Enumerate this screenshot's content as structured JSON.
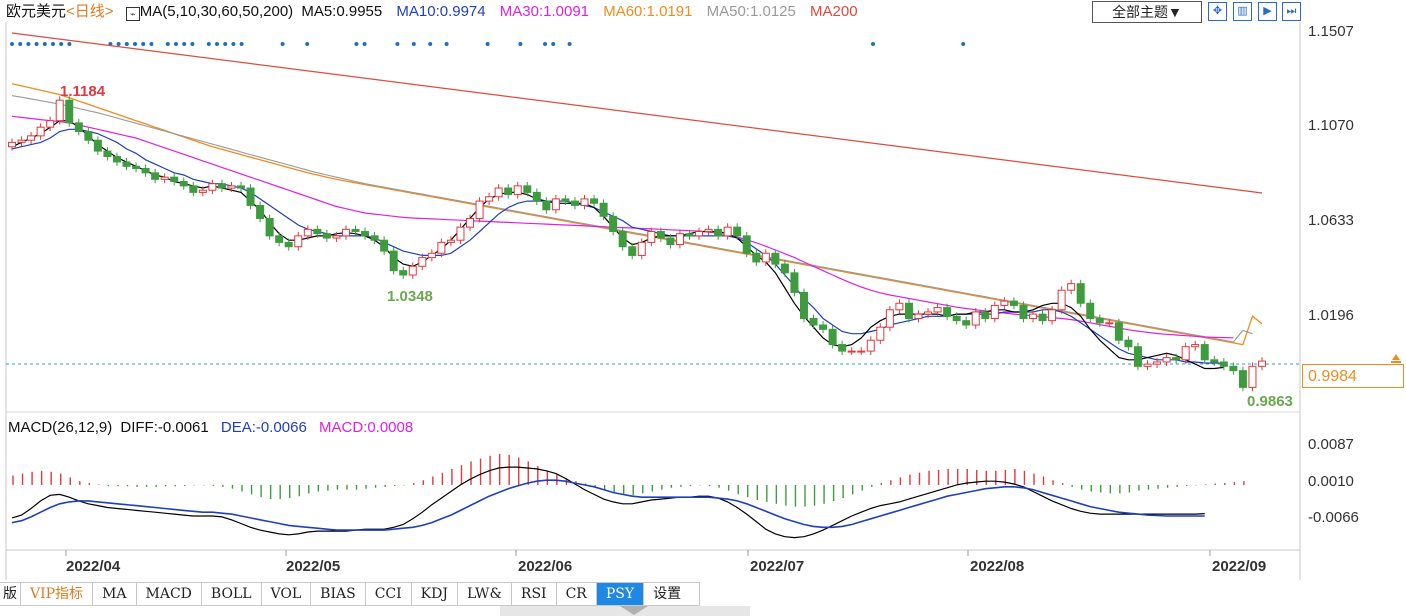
{
  "header": {
    "symbol": "欧元美元",
    "period": "<日线>",
    "ma_title": "MA(5,10,30,60,50,200)",
    "ma5": "MA5:0.9955",
    "ma10": "MA10:0.9974",
    "ma30": "MA30:1.0091",
    "ma60": "MA60:1.0191",
    "ma50": "MA50:1.0125",
    "ma200": "MA200",
    "theme_button": "全部主题▼",
    "tool_icons": [
      "expand-icon",
      "split-icon",
      "play-icon",
      "next-icon"
    ]
  },
  "colors": {
    "up": "#e0393e",
    "down": "#3f9b3f",
    "ma5": "#000000",
    "ma10": "#1f3fbf",
    "ma30": "#e020e0",
    "ma60": "#f08c1e",
    "ma50": "#9a9a9a",
    "ma200": "#e04a3a",
    "diff": "#000000",
    "dea": "#1f3fbf"
  },
  "price_tag": "0.9984",
  "macd_header": {
    "title": "MACD(26,12,9)",
    "diff": "DIFF:-0.0061",
    "dea": "DEA:-0.0066",
    "macd": "MACD:0.0008"
  },
  "tabs": [
    "版",
    "VIP指标",
    "MA",
    "MACD",
    "BOLL",
    "VOL",
    "BIAS",
    "CCI",
    "KDJ",
    "LW&",
    "RSI",
    "CR",
    "PSY",
    "设置"
  ],
  "active_tab": "PSY",
  "chart_data": {
    "type": "candlestick",
    "title": "欧元美元 <日线>",
    "price_axis": {
      "ticks": [
        "1.1507",
        "1.1070",
        "1.0633",
        "1.0196"
      ],
      "range": [
        0.976,
        1.1507
      ]
    },
    "macd_axis": {
      "ticks": [
        "0.0087",
        "0.0010",
        "-0.0066"
      ],
      "range": [
        -0.0115,
        0.0105
      ]
    },
    "date_labels": [
      "2022/04",
      "2022/05",
      "2022/06",
      "2022/07",
      "2022/08",
      "2022/09"
    ],
    "annotations": {
      "high": "1.1184",
      "low1": "1.0348",
      "low2": "0.9863",
      "current": "0.9984"
    },
    "closes": [
      1.099,
      1.1,
      1.102,
      1.106,
      1.109,
      1.1184,
      1.108,
      1.104,
      1.1,
      1.095,
      1.0925,
      1.09,
      1.088,
      1.087,
      1.085,
      1.082,
      1.083,
      1.081,
      1.079,
      1.076,
      1.077,
      1.08,
      1.078,
      1.079,
      1.078,
      1.07,
      1.064,
      1.056,
      1.053,
      1.051,
      1.056,
      1.059,
      1.057,
      1.055,
      1.056,
      1.059,
      1.058,
      1.056,
      1.054,
      1.049,
      1.04,
      1.038,
      1.042,
      1.046,
      1.048,
      1.053,
      1.054,
      1.06,
      1.064,
      1.072,
      1.074,
      1.078,
      1.075,
      1.079,
      1.076,
      1.072,
      1.068,
      1.073,
      1.072,
      1.07,
      1.073,
      1.071,
      1.065,
      1.058,
      1.051,
      1.047,
      1.053,
      1.058,
      1.055,
      1.052,
      1.057,
      1.056,
      1.058,
      1.059,
      1.056,
      1.06,
      1.056,
      1.048,
      1.044,
      1.048,
      1.043,
      1.039,
      1.03,
      1.018,
      1.015,
      1.013,
      1.006,
      1.003,
      1.003,
      1.003,
      1.008,
      1.014,
      1.022,
      1.025,
      1.018,
      1.02,
      1.021,
      1.023,
      1.019,
      1.017,
      1.015,
      1.021,
      1.018,
      1.024,
      1.026,
      1.024,
      1.018,
      1.02,
      1.017,
      1.022,
      1.031,
      1.034,
      1.025,
      1.018,
      1.016,
      1.016,
      1.008,
      1.005,
      0.996,
      0.997,
      0.998,
      1.0,
      0.999,
      1.005,
      1.006,
      0.999,
      0.998,
      0.996,
      0.994,
      0.9863,
      0.996,
      0.9984
    ],
    "ma5": [
      1.097,
      1.099,
      1.101,
      1.103,
      1.106,
      1.109,
      1.109,
      1.106,
      1.102,
      1.098,
      1.095,
      1.092,
      1.09,
      1.088,
      1.086,
      1.084,
      1.083,
      1.081,
      1.08,
      1.079,
      1.078,
      1.079,
      1.078,
      1.077,
      1.076,
      1.072,
      1.068,
      1.062,
      1.057,
      1.054,
      1.054,
      1.055,
      1.056,
      1.056,
      1.057,
      1.0575,
      1.057,
      1.056,
      1.054,
      1.051,
      1.046,
      1.043,
      1.042,
      1.044,
      1.047,
      1.05,
      1.054,
      1.059,
      1.064,
      1.069,
      1.073,
      1.075,
      1.076,
      1.076,
      1.075,
      1.073,
      1.072,
      1.071,
      1.071,
      1.071,
      1.071,
      1.069,
      1.065,
      1.06,
      1.055,
      1.052,
      1.053,
      1.055,
      1.056,
      1.056,
      1.056,
      1.057,
      1.058,
      1.058,
      1.058,
      1.057,
      1.055,
      1.051,
      1.047,
      1.044,
      1.039,
      1.032,
      1.025,
      1.019,
      1.014,
      1.009,
      1.006,
      1.005,
      1.006,
      1.009,
      1.014,
      1.017,
      1.019,
      1.02,
      1.02,
      1.02,
      1.02,
      1.02,
      1.019,
      1.02,
      1.02,
      1.021,
      1.021,
      1.022,
      1.022,
      1.021,
      1.021,
      1.022,
      1.024,
      1.025,
      1.025,
      1.023,
      1.019,
      1.013,
      1.008,
      1.004,
      1.0,
      0.999,
      0.999,
      1.0,
      1.001,
      1.002,
      1.001,
      0.999,
      0.997,
      0.995,
      0.995,
      0.9955
    ],
    "ma10": [
      1.096,
      1.097,
      1.098,
      1.099,
      1.101,
      1.104,
      1.105,
      1.105,
      1.104,
      1.103,
      1.101,
      1.099,
      1.096,
      1.094,
      1.091,
      1.089,
      1.087,
      1.085,
      1.084,
      1.082,
      1.081,
      1.08,
      1.08,
      1.079,
      1.078,
      1.076,
      1.073,
      1.07,
      1.067,
      1.064,
      1.061,
      1.059,
      1.058,
      1.057,
      1.056,
      1.056,
      1.056,
      1.056,
      1.055,
      1.053,
      1.051,
      1.049,
      1.048,
      1.047,
      1.047,
      1.047,
      1.048,
      1.051,
      1.054,
      1.058,
      1.062,
      1.066,
      1.069,
      1.071,
      1.072,
      1.072,
      1.072,
      1.072,
      1.072,
      1.071,
      1.07,
      1.069,
      1.067,
      1.065,
      1.063,
      1.06,
      1.059,
      1.058,
      1.057,
      1.056,
      1.056,
      1.056,
      1.056,
      1.056,
      1.056,
      1.056,
      1.055,
      1.053,
      1.05,
      1.047,
      1.043,
      1.038,
      1.033,
      1.027,
      1.023,
      1.018,
      1.015,
      1.012,
      1.011,
      1.011,
      1.012,
      1.013,
      1.015,
      1.016,
      1.017,
      1.018,
      1.019,
      1.019,
      1.019,
      1.02,
      1.02,
      1.02,
      1.02,
      1.02,
      1.021,
      1.021,
      1.021,
      1.021,
      1.022,
      1.022,
      1.021,
      1.019,
      1.016,
      1.013,
      1.01,
      1.007,
      1.004,
      1.002,
      1.001,
      1.0,
      0.999,
      0.999,
      0.999,
      0.998,
      0.998,
      0.9975,
      0.9975,
      0.9974
    ],
    "ma30": [
      1.111,
      1.1105,
      1.11,
      1.1095,
      1.109,
      1.1085,
      1.108,
      1.107,
      1.106,
      1.105,
      1.104,
      1.103,
      1.102,
      1.101,
      1.0995,
      1.098,
      1.0965,
      1.095,
      1.0935,
      1.092,
      1.0905,
      1.089,
      1.0875,
      1.086,
      1.0845,
      1.083,
      1.0815,
      1.08,
      1.0785,
      1.077,
      1.0755,
      1.074,
      1.0725,
      1.071,
      1.0695,
      1.0685,
      1.0675,
      1.0665,
      1.066,
      1.0655,
      1.065,
      1.0645,
      1.0642,
      1.064,
      1.0638,
      1.0636,
      1.0634,
      1.0632,
      1.063,
      1.0628,
      1.0626,
      1.0624,
      1.0622,
      1.062,
      1.0618,
      1.0616,
      1.0614,
      1.0612,
      1.061,
      1.0608,
      1.0606,
      1.0604,
      1.0602,
      1.06,
      1.0598,
      1.0596,
      1.0594,
      1.0592,
      1.059,
      1.0588,
      1.0586,
      1.0584,
      1.0582,
      1.0578,
      1.0572,
      1.0565,
      1.0555,
      1.0542,
      1.0528,
      1.0512,
      1.0495,
      1.0478,
      1.046,
      1.044,
      1.042,
      1.04,
      1.038,
      1.036,
      1.0342,
      1.0325,
      1.031,
      1.0298,
      1.0288,
      1.028,
      1.0272,
      1.0264,
      1.0256,
      1.0248,
      1.024,
      1.0232,
      1.0226,
      1.022,
      1.0215,
      1.021,
      1.0205,
      1.02,
      1.0196,
      1.0192,
      1.0188,
      1.0184,
      1.018,
      1.0175,
      1.0168,
      1.016,
      1.0152,
      1.0144,
      1.0136,
      1.0128,
      1.0122,
      1.0116,
      1.0111,
      1.0107,
      1.0104,
      1.0101,
      1.0098,
      1.0095,
      1.0093,
      1.0092,
      1.0091
    ],
    "ma60": [
      1.126,
      1.125,
      1.124,
      1.123,
      1.122,
      1.121,
      1.1195,
      1.118,
      1.1165,
      1.115,
      1.1135,
      1.112,
      1.1105,
      1.109,
      1.1075,
      1.106,
      1.1045,
      1.103,
      1.1015,
      1.1,
      1.0985,
      1.097,
      1.0958,
      1.0946,
      1.0934,
      1.0922,
      1.091,
      1.0898,
      1.0886,
      1.0874,
      1.0862,
      1.085,
      1.084,
      1.083,
      1.082,
      1.0812,
      1.0804,
      1.0796,
      1.0788,
      1.078,
      1.0772,
      1.0764,
      1.0756,
      1.0748,
      1.074,
      1.0732,
      1.0724,
      1.0716,
      1.0708,
      1.07,
      1.0692,
      1.0684,
      1.0676,
      1.0668,
      1.066,
      1.0652,
      1.0644,
      1.0636,
      1.0628,
      1.062,
      1.0612,
      1.0604,
      1.0596,
      1.0588,
      1.058,
      1.0572,
      1.0564,
      1.0556,
      1.0548,
      1.054,
      1.0532,
      1.0524,
      1.0516,
      1.0508,
      1.05,
      1.0492,
      1.0484,
      1.0476,
      1.0468,
      1.046,
      1.0452,
      1.0444,
      1.0436,
      1.0428,
      1.042,
      1.0412,
      1.0404,
      1.0396,
      1.0388,
      1.038,
      1.0372,
      1.0364,
      1.0356,
      1.0348,
      1.034,
      1.0332,
      1.0324,
      1.0316,
      1.0308,
      1.03,
      1.0292,
      1.0284,
      1.0276,
      1.0268,
      1.026,
      1.0252,
      1.0244,
      1.0236,
      1.0228,
      1.022,
      1.0212,
      1.0204,
      1.0196,
      1.0188,
      1.018,
      1.0172,
      1.0164,
      1.0156,
      1.0148,
      1.014,
      1.0132,
      1.0124,
      1.0116,
      1.0108,
      1.01,
      1.0092,
      1.0084,
      1.0076,
      1.0068,
      1.006,
      1.0191
    ],
    "ma50": [
      1.1205,
      1.1198,
      1.119,
      1.1182,
      1.1174,
      1.1166,
      1.1156,
      1.1146,
      1.1136,
      1.1126,
      1.1114,
      1.1102,
      1.109,
      1.1078,
      1.1066,
      1.1054,
      1.1042,
      1.103,
      1.1018,
      1.1006,
      1.0994,
      1.0982,
      1.097,
      1.0958,
      1.0946,
      1.0934,
      1.0922,
      1.091,
      1.0898,
      1.0886,
      1.0874,
      1.0862,
      1.085,
      1.084,
      1.083,
      1.082,
      1.081,
      1.08,
      1.0792,
      1.0784,
      1.0776,
      1.0768,
      1.076,
      1.0752,
      1.0744,
      1.0736,
      1.0728,
      1.072,
      1.0712,
      1.0704,
      1.0696,
      1.0688,
      1.068,
      1.0672,
      1.0664,
      1.0656,
      1.0648,
      1.064,
      1.0632,
      1.0624,
      1.0616,
      1.0608,
      1.06,
      1.0592,
      1.0584,
      1.0576,
      1.0568,
      1.056,
      1.0552,
      1.0544,
      1.0536,
      1.0528,
      1.052,
      1.0512,
      1.0504,
      1.0496,
      1.0488,
      1.048,
      1.0472,
      1.0464,
      1.0456,
      1.0448,
      1.044,
      1.0432,
      1.0424,
      1.0416,
      1.0408,
      1.04,
      1.0392,
      1.0384,
      1.0376,
      1.0368,
      1.036,
      1.0352,
      1.0344,
      1.0336,
      1.0328,
      1.032,
      1.0312,
      1.0304,
      1.0296,
      1.0288,
      1.028,
      1.0272,
      1.0264,
      1.0256,
      1.0248,
      1.024,
      1.0232,
      1.0224,
      1.0216,
      1.0208,
      1.02,
      1.0192,
      1.0184,
      1.0176,
      1.0168,
      1.016,
      1.0152,
      1.0144,
      1.0136,
      1.0128,
      1.012,
      1.0112,
      1.0104,
      1.0096,
      1.0088,
      1.008,
      1.0072,
      1.0125
    ],
    "ma200": [
      1.148,
      1.1475,
      1.147,
      1.1465,
      1.146,
      1.1455,
      1.145,
      1.1445,
      1.144,
      1.1435,
      1.143,
      1.1425,
      1.142,
      1.1415,
      1.141,
      1.1405,
      1.14,
      1.1395,
      1.139,
      1.1385,
      1.138,
      1.1375,
      1.137,
      1.1365,
      1.136,
      1.1355,
      1.135,
      1.1345,
      1.134,
      1.1335,
      1.133,
      1.1325,
      1.132,
      1.1315,
      1.131,
      1.1305,
      1.13,
      1.1295,
      1.129,
      1.1285,
      1.128,
      1.1275,
      1.127,
      1.1265,
      1.126,
      1.1255,
      1.125,
      1.1245,
      1.124,
      1.1235,
      1.123,
      1.1225,
      1.122,
      1.1215,
      1.121,
      1.1205,
      1.12,
      1.1195,
      1.119,
      1.1185,
      1.118,
      1.1175,
      1.117,
      1.1165,
      1.116,
      1.1155,
      1.115,
      1.1145,
      1.114,
      1.1135,
      1.113,
      1.1125,
      1.112,
      1.1115,
      1.111,
      1.1105,
      1.11,
      1.1095,
      1.109,
      1.1085,
      1.108,
      1.1075,
      1.107,
      1.1065,
      1.106,
      1.1055,
      1.105,
      1.1045,
      1.104,
      1.1035,
      1.103,
      1.1025,
      1.102,
      1.1015,
      1.101,
      1.1005,
      1.1,
      1.0995,
      1.099,
      1.0985,
      1.098,
      1.0975,
      1.097,
      1.0965,
      1.096,
      1.0955,
      1.095,
      1.0945,
      1.094,
      1.0935,
      1.093,
      1.0925,
      1.092,
      1.0915,
      1.091,
      1.0905,
      1.09,
      1.0895,
      1.089,
      1.0885,
      1.088,
      1.0875,
      1.087,
      1.0865,
      1.086,
      1.0855,
      1.085,
      1.0845,
      1.084,
      1.0835,
      1.083,
      1.0825
    ],
    "macd_hist": [
      0.002,
      0.0024,
      0.0028,
      0.003,
      0.0028,
      0.0024,
      0.0016,
      0.0008,
      0.0004,
      0.0001,
      -0.0002,
      -0.0003,
      -0.0003,
      -0.0004,
      -0.0004,
      -0.0004,
      -0.0003,
      -0.0003,
      -0.0002,
      -0.0001,
      -0.0001,
      -0.0002,
      -0.0004,
      -0.0008,
      -0.0014,
      -0.002,
      -0.0026,
      -0.003,
      -0.003,
      -0.0028,
      -0.0024,
      -0.0018,
      -0.0014,
      -0.0012,
      -0.001,
      -0.001,
      -0.001,
      -0.0008,
      -0.0006,
      -0.0004,
      -0.0002,
      -0.0001,
      0.0004,
      0.001,
      0.0018,
      0.0026,
      0.0034,
      0.0042,
      0.005,
      0.0056,
      0.0062,
      0.0066,
      0.0064,
      0.0058,
      0.005,
      0.004,
      0.003,
      0.0022,
      0.0014,
      0.0008,
      0.0003,
      -0.0004,
      -0.001,
      -0.0016,
      -0.002,
      -0.0022,
      -0.0018,
      -0.0014,
      -0.001,
      -0.0006,
      -0.0004,
      -0.0002,
      -0.0001,
      -0.0002,
      -0.0006,
      -0.0012,
      -0.002,
      -0.0026,
      -0.0032,
      -0.0036,
      -0.004,
      -0.0044,
      -0.0046,
      -0.0046,
      -0.0044,
      -0.004,
      -0.0034,
      -0.0028,
      -0.002,
      -0.0012,
      -0.0004,
      0.0004,
      0.001,
      0.0016,
      0.0022,
      0.0026,
      0.003,
      0.0032,
      0.0034,
      0.0034,
      0.0034,
      0.0032,
      0.003,
      0.003,
      0.0032,
      0.0034,
      0.003,
      0.0024,
      0.0018,
      0.001,
      0.0004,
      -0.0004,
      -0.001,
      -0.0014,
      -0.0016,
      -0.0018,
      -0.0018,
      -0.0016,
      -0.0012,
      -0.001,
      -0.0008,
      -0.0006,
      -0.0004,
      -0.0002,
      -0.0001,
      0.0001,
      0.0003,
      0.0004,
      0.0006,
      0.0008
    ],
    "diff": [
      -0.007,
      -0.0064,
      -0.005,
      -0.0034,
      -0.0022,
      -0.002,
      -0.0026,
      -0.0034,
      -0.004,
      -0.0044,
      -0.0048,
      -0.005,
      -0.0052,
      -0.0054,
      -0.0056,
      -0.0058,
      -0.006,
      -0.0062,
      -0.0064,
      -0.0066,
      -0.0066,
      -0.0066,
      -0.0068,
      -0.0074,
      -0.0082,
      -0.009,
      -0.0096,
      -0.01,
      -0.0104,
      -0.0106,
      -0.0104,
      -0.01,
      -0.0098,
      -0.0098,
      -0.0098,
      -0.0098,
      -0.0096,
      -0.0094,
      -0.0094,
      -0.0094,
      -0.009,
      -0.0084,
      -0.0072,
      -0.0058,
      -0.0042,
      -0.0028,
      -0.0014,
      0.0,
      0.0012,
      0.0022,
      0.003,
      0.0036,
      0.0038,
      0.0038,
      0.0036,
      0.0034,
      0.003,
      0.0024,
      0.0014,
      0.0002,
      -0.001,
      -0.002,
      -0.003,
      -0.0036,
      -0.004,
      -0.004,
      -0.0036,
      -0.0032,
      -0.003,
      -0.0028,
      -0.0026,
      -0.0026,
      -0.0024,
      -0.0024,
      -0.0028,
      -0.0036,
      -0.0048,
      -0.0062,
      -0.0078,
      -0.0094,
      -0.0104,
      -0.011,
      -0.0112,
      -0.011,
      -0.0104,
      -0.0096,
      -0.0086,
      -0.0076,
      -0.0066,
      -0.0058,
      -0.005,
      -0.0044,
      -0.004,
      -0.0036,
      -0.003,
      -0.0024,
      -0.0018,
      -0.0012,
      -0.0006,
      0.0,
      0.0004,
      0.0006,
      0.0008,
      0.0008,
      0.0006,
      0.0002,
      -0.0004,
      -0.0014,
      -0.0024,
      -0.0034,
      -0.0042,
      -0.005,
      -0.0056,
      -0.006,
      -0.0062,
      -0.0062,
      -0.0062,
      -0.0062,
      -0.0062,
      -0.0062,
      -0.0062,
      -0.0062,
      -0.0062,
      -0.0062,
      -0.0062,
      -0.0061
    ],
    "dea": [
      -0.008,
      -0.0076,
      -0.0068,
      -0.0058,
      -0.0048,
      -0.004,
      -0.0036,
      -0.0034,
      -0.0034,
      -0.0036,
      -0.0038,
      -0.004,
      -0.0042,
      -0.0044,
      -0.0046,
      -0.0048,
      -0.005,
      -0.0052,
      -0.0054,
      -0.0056,
      -0.0058,
      -0.0058,
      -0.006,
      -0.0062,
      -0.0066,
      -0.007,
      -0.0074,
      -0.0078,
      -0.0082,
      -0.0086,
      -0.0088,
      -0.009,
      -0.0092,
      -0.0094,
      -0.0096,
      -0.0096,
      -0.0096,
      -0.0096,
      -0.0096,
      -0.0096,
      -0.0094,
      -0.0092,
      -0.009,
      -0.0086,
      -0.008,
      -0.0072,
      -0.0064,
      -0.0054,
      -0.0044,
      -0.0034,
      -0.0024,
      -0.0016,
      -0.0008,
      -0.0002,
      0.0004,
      0.0008,
      0.001,
      0.001,
      0.0008,
      0.0004,
      0.0,
      -0.0004,
      -0.001,
      -0.0016,
      -0.002,
      -0.0024,
      -0.0026,
      -0.0026,
      -0.0026,
      -0.0026,
      -0.0026,
      -0.0026,
      -0.0026,
      -0.0026,
      -0.0028,
      -0.003,
      -0.0034,
      -0.004,
      -0.0048,
      -0.0056,
      -0.0064,
      -0.0072,
      -0.0078,
      -0.0084,
      -0.0088,
      -0.009,
      -0.009,
      -0.0088,
      -0.0084,
      -0.0078,
      -0.0072,
      -0.0066,
      -0.006,
      -0.0054,
      -0.0048,
      -0.0042,
      -0.0036,
      -0.003,
      -0.0024,
      -0.002,
      -0.0016,
      -0.0012,
      -0.0008,
      -0.0006,
      -0.0004,
      -0.0004,
      -0.0006,
      -0.001,
      -0.0016,
      -0.0022,
      -0.0028,
      -0.0034,
      -0.004,
      -0.0046,
      -0.005,
      -0.0054,
      -0.0058,
      -0.006,
      -0.0062,
      -0.0064,
      -0.0065,
      -0.0066,
      -0.0066,
      -0.0066,
      -0.0066,
      -0.0066
    ]
  }
}
